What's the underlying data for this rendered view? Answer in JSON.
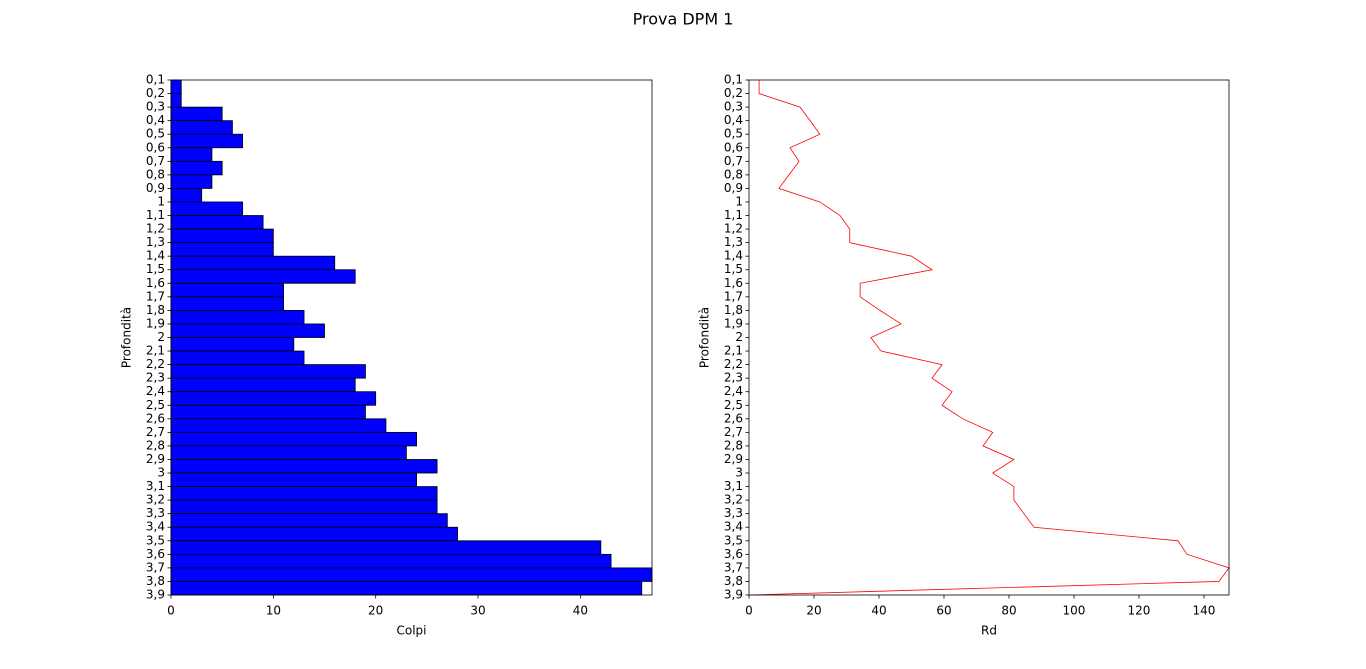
{
  "title": "Prova DPM 1",
  "chart_data": [
    {
      "type": "bar",
      "orientation": "horizontal",
      "xlabel": "Colpi",
      "ylabel": "Profondità",
      "color": "#0000ff",
      "edgecolor": "#000000",
      "categories": [
        "0,1",
        "0,2",
        "0,3",
        "0,4",
        "0,5",
        "0,6",
        "0,7",
        "0,8",
        "0,9",
        "1",
        "1,1",
        "1,2",
        "1,3",
        "1,4",
        "1,5",
        "1,6",
        "1,7",
        "1,8",
        "1,9",
        "2",
        "2,1",
        "2,2",
        "2,3",
        "2,4",
        "2,5",
        "2,6",
        "2,7",
        "2,8",
        "2,9",
        "3",
        "3,1",
        "3,2",
        "3,3",
        "3,4",
        "3,5",
        "3,6",
        "3,7",
        "3,8",
        "3,9"
      ],
      "values": [
        1,
        1,
        5,
        6,
        7,
        4,
        5,
        4,
        3,
        7,
        9,
        10,
        10,
        16,
        18,
        11,
        11,
        13,
        15,
        12,
        13,
        19,
        18,
        20,
        19,
        21,
        24,
        23,
        26,
        24,
        26,
        26,
        27,
        28,
        42,
        43,
        47,
        46,
        0
      ],
      "xlim": [
        0,
        47
      ],
      "xticks": [
        0,
        10,
        20,
        30,
        40
      ]
    },
    {
      "type": "line",
      "xlabel": "Rd",
      "ylabel": "Profondità",
      "color": "#ff0000",
      "categories": [
        "0,1",
        "0,2",
        "0,3",
        "0,4",
        "0,5",
        "0,6",
        "0,7",
        "0,8",
        "0,9",
        "1",
        "1,1",
        "1,2",
        "1,3",
        "1,4",
        "1,5",
        "1,6",
        "1,7",
        "1,8",
        "1,9",
        "2",
        "2,1",
        "2,2",
        "2,3",
        "2,4",
        "2,5",
        "2,6",
        "2,7",
        "2,8",
        "2,9",
        "3",
        "3,1",
        "3,2",
        "3,3",
        "3,4",
        "3,5",
        "3,6",
        "3,7",
        "3,8",
        "3,9"
      ],
      "values": [
        3.1,
        3.1,
        15.7,
        18.8,
        21.8,
        12.6,
        15.4,
        12.3,
        9.2,
        21.8,
        28,
        31,
        31,
        50,
        56.3,
        34.2,
        34.2,
        40.3,
        46.8,
        37.5,
        40.6,
        59.4,
        56.3,
        62.5,
        59.4,
        65.8,
        75,
        72,
        81.5,
        75,
        81.5,
        81.5,
        84.6,
        87.7,
        132,
        134.8,
        147.7,
        144.6,
        0
      ],
      "xlim": [
        0,
        147.7
      ],
      "xticks": [
        0,
        20,
        40,
        60,
        80,
        100,
        120,
        140
      ]
    }
  ]
}
